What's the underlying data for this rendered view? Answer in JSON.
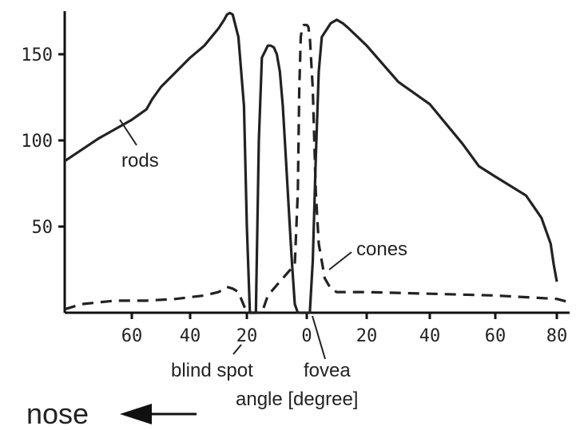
{
  "chart_data": {
    "type": "line",
    "xlabel": "angle [degree]",
    "ylabel": "",
    "xlim": [
      -80,
      85
    ],
    "ylim": [
      0,
      175
    ],
    "grid": false,
    "y_ticks": [
      "50",
      "100",
      "150"
    ],
    "x_ticks": [
      "60",
      "40",
      "20",
      "0",
      "20",
      "40",
      "60",
      "80"
    ],
    "series": [
      {
        "name": "rods",
        "style": "solid",
        "x": [
          -80,
          -70,
          -60,
          -55,
          -53,
          -50,
          -40,
          -35,
          -30,
          -28,
          -27,
          -26,
          -25,
          -23,
          -21,
          -20,
          -19,
          -18,
          -17,
          -16,
          -15,
          -13,
          -12,
          -11,
          -10,
          -9,
          -8,
          -7,
          -6,
          -5,
          -4,
          -3,
          1,
          2,
          3,
          4,
          5,
          8,
          10,
          12,
          14,
          20,
          30,
          40,
          50,
          55,
          60,
          70,
          75,
          78,
          79,
          80
        ],
        "y": [
          88,
          101,
          112,
          118,
          124,
          131,
          148,
          155,
          165,
          170,
          173,
          174,
          173,
          160,
          120,
          50,
          0,
          0,
          0,
          100,
          148,
          155,
          155,
          154,
          150,
          140,
          120,
          90,
          60,
          30,
          5,
          0,
          0,
          30,
          90,
          140,
          160,
          168,
          170,
          168,
          165,
          155,
          134,
          121,
          98,
          85,
          79,
          68,
          55,
          40,
          28,
          18
        ]
      },
      {
        "name": "cones",
        "style": "dashed",
        "x": [
          -80,
          -75,
          -65,
          -55,
          -45,
          -35,
          -30,
          -28,
          -27,
          -25,
          -23,
          -20,
          -19,
          -17,
          -16,
          -15,
          -13,
          -10,
          -8,
          -6,
          -4,
          -3,
          -2.5,
          -2,
          -1.5,
          -1,
          0,
          0.5,
          1,
          2,
          3,
          4,
          6,
          8,
          10,
          20,
          40,
          60,
          80,
          85
        ],
        "y": [
          2,
          5,
          7,
          7,
          8,
          10,
          12,
          14,
          15,
          14,
          12,
          0,
          0,
          0,
          0,
          0,
          10,
          16,
          20,
          24,
          28,
          70,
          130,
          160,
          166,
          167,
          167,
          166,
          160,
          130,
          70,
          40,
          20,
          14,
          12,
          12,
          11,
          10,
          8,
          6
        ]
      }
    ],
    "annotations": {
      "rods_label": "rods",
      "cones_label": "cones",
      "blind_spot_label": "blind spot",
      "fovea_label": "fovea",
      "nose_label": "nose"
    }
  }
}
